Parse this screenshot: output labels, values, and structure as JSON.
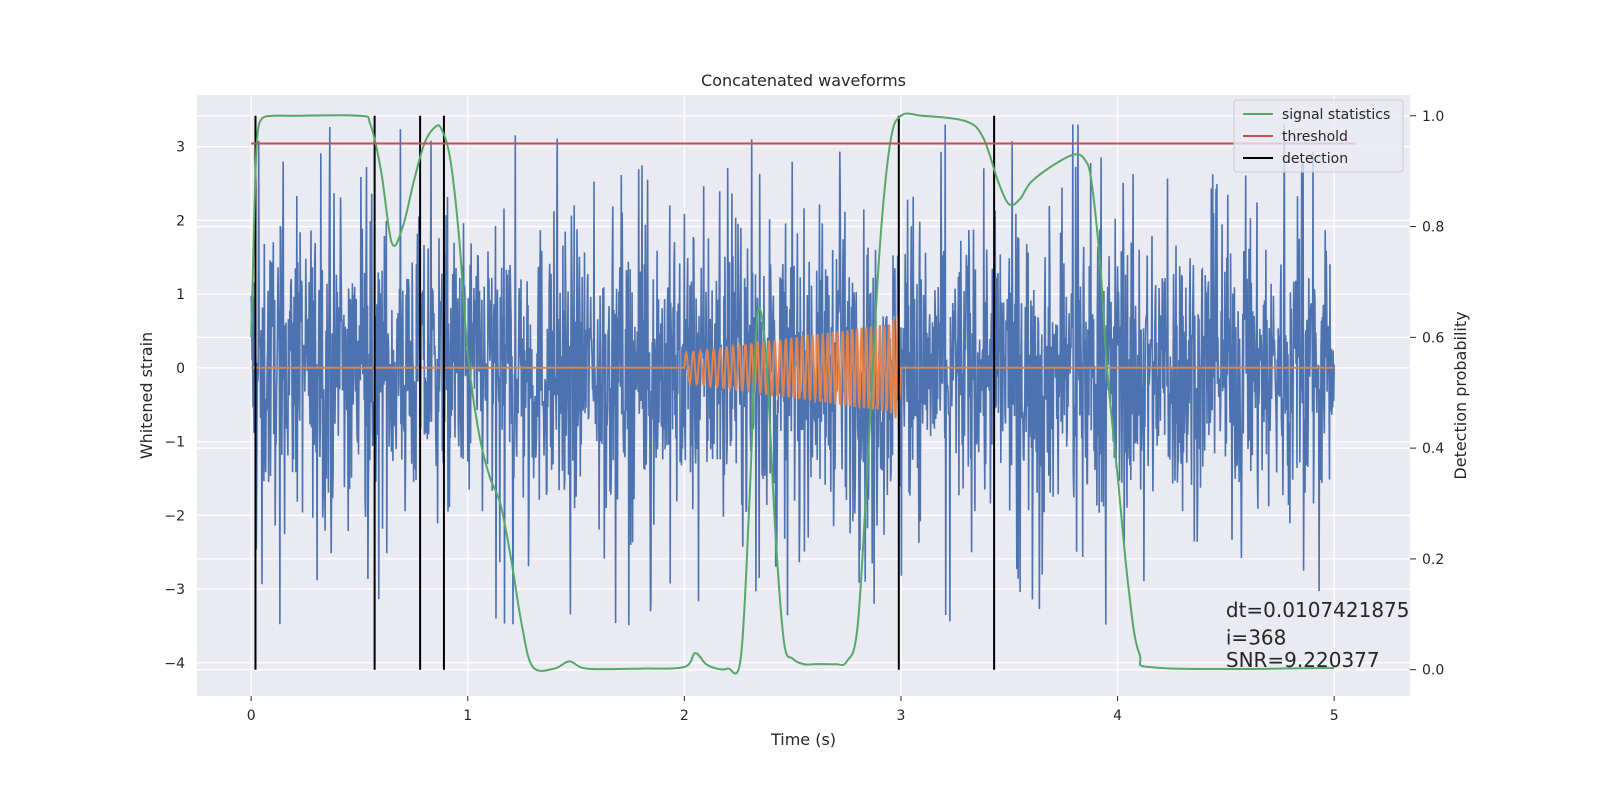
{
  "chart_data": {
    "type": "line",
    "title": "Concatenated waveforms",
    "xlabel": "Time (s)",
    "ylabel": "Whitened strain",
    "y2label": "Detection probability",
    "xlim": [
      -0.25,
      5.35
    ],
    "ylim": [
      -4.45,
      3.7
    ],
    "y2lim": [
      -0.0475,
      1.0375
    ],
    "x_ticks": [
      0,
      1,
      2,
      3,
      4,
      5
    ],
    "y_ticks": [
      -4,
      -3,
      -2,
      -1,
      0,
      1,
      2,
      3
    ],
    "y2_ticks": [
      0.0,
      0.2,
      0.4,
      0.6,
      0.8,
      1.0
    ],
    "x_tick_labels": [
      "0",
      "1",
      "2",
      "3",
      "4",
      "5"
    ],
    "y_tick_labels": [
      "−4",
      "−3",
      "−2",
      "−1",
      "0",
      "1",
      "2",
      "3"
    ],
    "y2_tick_labels": [
      "0.0",
      "0.2",
      "0.4",
      "0.6",
      "0.8",
      "1.0"
    ],
    "grid": true,
    "legend_position": "top-right",
    "colors": {
      "background": "#eaeaf2",
      "strain": "#4c72b0",
      "injection": "#dd8452",
      "signal_statistics": "#55a868",
      "threshold": "#c44e52",
      "detection": "#000000"
    },
    "series": [
      {
        "name": "",
        "kind": "whitened strain noise",
        "axis": "left",
        "x_range": [
          0,
          5
        ],
        "amplitude_typical": 1.3,
        "amplitude_peak": 3.3
      },
      {
        "name": "",
        "kind": "injected chirp waveform",
        "axis": "left",
        "x": [
          0,
          2.0,
          2.0,
          2.95,
          2.98,
          2.99,
          3.0,
          5.0
        ],
        "amplitude": [
          0,
          0,
          0.2,
          0.6,
          0.7,
          0.7,
          0,
          0
        ],
        "cycles_between_2_and_3": 40
      },
      {
        "name": "signal statistics",
        "axis": "right",
        "x": [
          0,
          0.01,
          0.02,
          0.03,
          0.05,
          0.1,
          0.2,
          0.5,
          0.55,
          0.6,
          0.65,
          0.7,
          0.75,
          0.8,
          0.85,
          0.88,
          0.92,
          0.96,
          1.0,
          1.05,
          1.1,
          1.15,
          1.2,
          1.25,
          1.3,
          1.4,
          1.47,
          1.55,
          1.8,
          2.0,
          2.05,
          2.1,
          2.15,
          2.2,
          2.26,
          2.3,
          2.33,
          2.35,
          2.38,
          2.42,
          2.46,
          2.5,
          2.55,
          2.6,
          2.65,
          2.7,
          2.75,
          2.8,
          2.85,
          2.9,
          2.95,
          3.0,
          3.1,
          3.3,
          3.38,
          3.45,
          3.5,
          3.55,
          3.6,
          3.7,
          3.8,
          3.85,
          3.88,
          3.92,
          3.95,
          4.0,
          4.05,
          4.1,
          4.2,
          5.0
        ],
        "y": [
          0.6,
          0.75,
          0.9,
          0.97,
          0.995,
          1.0,
          1.0,
          1.0,
          0.985,
          0.9,
          0.77,
          0.8,
          0.88,
          0.95,
          0.98,
          0.975,
          0.92,
          0.78,
          0.57,
          0.43,
          0.35,
          0.3,
          0.2,
          0.08,
          0.005,
          0.002,
          0.015,
          0.002,
          0.002,
          0.005,
          0.03,
          0.01,
          0.002,
          0.002,
          0.02,
          0.3,
          0.6,
          0.65,
          0.55,
          0.25,
          0.05,
          0.02,
          0.01,
          0.01,
          0.01,
          0.01,
          0.015,
          0.08,
          0.4,
          0.75,
          0.95,
          1.0,
          1.0,
          0.99,
          0.96,
          0.88,
          0.84,
          0.85,
          0.88,
          0.91,
          0.93,
          0.92,
          0.88,
          0.73,
          0.55,
          0.35,
          0.15,
          0.03,
          0.003,
          0.003
        ]
      },
      {
        "name": "threshold",
        "axis": "right",
        "x": [
          0,
          5.1
        ],
        "y": [
          0.95,
          0.95
        ]
      }
    ],
    "detection": {
      "name": "detection",
      "x": [
        0.02,
        0.57,
        0.78,
        0.89,
        2.99,
        3.43
      ],
      "y2_range": [
        0.0,
        1.0
      ]
    },
    "annotations": [
      {
        "text": "dt=0.0107421875",
        "x": 4.5,
        "y": -3.38
      },
      {
        "text": " i=368",
        "x": 4.5,
        "y": -3.75
      },
      {
        "text": "SNR=9.220377",
        "x": 4.5,
        "y": -4.06
      }
    ]
  }
}
